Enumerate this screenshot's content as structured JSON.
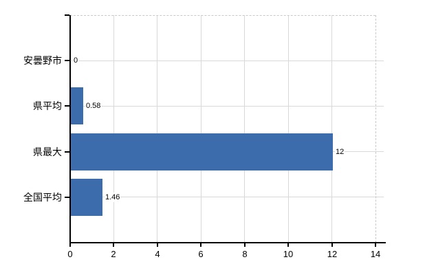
{
  "chart_data": {
    "type": "bar",
    "orientation": "horizontal",
    "title": "",
    "xlabel": "",
    "ylabel": "",
    "categories": [
      "安曇野市",
      "県平均",
      "県最大",
      "全国平均"
    ],
    "values": [
      0,
      0.58,
      12,
      1.46
    ],
    "value_labels": [
      "0",
      "0.58",
      "12",
      "1.46"
    ],
    "xlim": [
      0,
      14
    ],
    "x_ticks": [
      0,
      2,
      4,
      6,
      8,
      10,
      12,
      14
    ],
    "x_tick_labels": [
      "0",
      "2",
      "4",
      "6",
      "8",
      "10",
      "12",
      "14"
    ],
    "grid": true,
    "legend": false,
    "colors": {
      "bar": "#3d6cac",
      "grid": "#d9d9d9",
      "dashed_border": "#c9c9c9",
      "axis": "#000000",
      "text": "#000000",
      "background": "#ffffff"
    }
  }
}
